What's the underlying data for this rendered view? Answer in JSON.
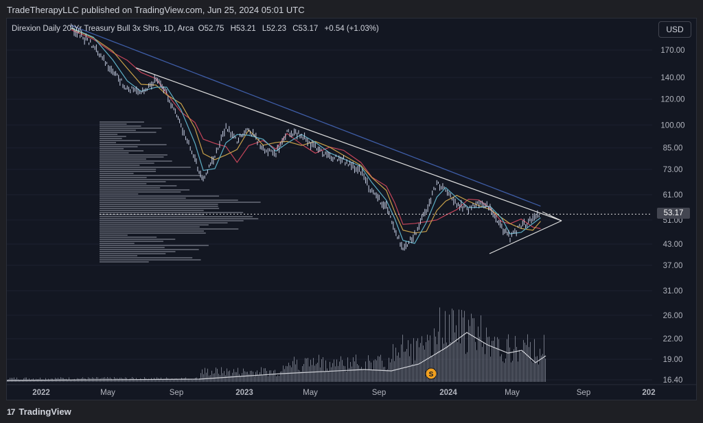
{
  "header": {
    "published": "TradeTherapyLLC published on TradingView.com, Jun 25, 2024 05:01 UTC"
  },
  "symbol": {
    "name": "Direxion Daily 20-Yr Treasury Bull 3x Shrs, 1D, Arca",
    "open": "O52.75",
    "high": "H53.21",
    "low": "L52.23",
    "close": "C53.17",
    "change": "+0.54 (+1.03%)"
  },
  "currency_button": "USD",
  "footer": {
    "brand": "TradingView",
    "logo": "17"
  },
  "colors": {
    "background": "#131722",
    "candle": "#c9d1e6",
    "ma_fast": "#5fb0c7",
    "ma_mid": "#c9a24a",
    "ma_slow": "#c4455a",
    "ma_long": "#3f5ea8",
    "trendline": "#e0e0e0",
    "volume": "#8a8f9c"
  },
  "chart_data": {
    "type": "line",
    "title": "",
    "scale": "log",
    "y_ticks": [
      "170.00",
      "140.00",
      "120.00",
      "100.00",
      "85.00",
      "73.00",
      "61.00",
      "51.00",
      "43.00",
      "37.00",
      "31.00",
      "26.00",
      "22.00",
      "19.00",
      "16.40"
    ],
    "x_ticks": [
      "2022",
      "May",
      "Sep",
      "2023",
      "May",
      "Sep",
      "2024",
      "May",
      "Sep",
      "202"
    ],
    "last_price": "53.17",
    "marker": "S",
    "series": [
      {
        "values": [
          {
            "date": "2022-03-01",
            "y": 200
          },
          {
            "date": "2022-04-10",
            "y": 175
          },
          {
            "date": "2022-05-15",
            "y": 145
          },
          {
            "date": "2022-06-10",
            "y": 130
          },
          {
            "date": "2022-07-05",
            "y": 125
          },
          {
            "date": "2022-08-01",
            "y": 138
          },
          {
            "date": "2022-08-20",
            "y": 125
          },
          {
            "date": "2022-09-15",
            "y": 100
          },
          {
            "date": "2022-10-10",
            "y": 78
          },
          {
            "date": "2022-10-25",
            "y": 68
          },
          {
            "date": "2022-11-15",
            "y": 80
          },
          {
            "date": "2022-12-05",
            "y": 98
          },
          {
            "date": "2022-12-25",
            "y": 90
          },
          {
            "date": "2023-01-15",
            "y": 97
          },
          {
            "date": "2023-02-10",
            "y": 85
          },
          {
            "date": "2023-03-05",
            "y": 82
          },
          {
            "date": "2023-03-25",
            "y": 95
          },
          {
            "date": "2023-04-20",
            "y": 93
          },
          {
            "date": "2023-05-15",
            "y": 85
          },
          {
            "date": "2023-06-10",
            "y": 80
          },
          {
            "date": "2023-07-05",
            "y": 78
          },
          {
            "date": "2023-08-05",
            "y": 72
          },
          {
            "date": "2023-08-25",
            "y": 62
          },
          {
            "date": "2023-09-20",
            "y": 56
          },
          {
            "date": "2023-10-05",
            "y": 48
          },
          {
            "date": "2023-10-20",
            "y": 41
          },
          {
            "date": "2023-11-10",
            "y": 46
          },
          {
            "date": "2023-12-01",
            "y": 55
          },
          {
            "date": "2023-12-20",
            "y": 66
          },
          {
            "date": "2024-01-05",
            "y": 63
          },
          {
            "date": "2024-01-25",
            "y": 57
          },
          {
            "date": "2024-02-15",
            "y": 55
          },
          {
            "date": "2024-03-05",
            "y": 57
          },
          {
            "date": "2024-03-25",
            "y": 56
          },
          {
            "date": "2024-04-15",
            "y": 48
          },
          {
            "date": "2024-04-30",
            "y": 45
          },
          {
            "date": "2024-05-20",
            "y": 49
          },
          {
            "date": "2024-06-10",
            "y": 51
          },
          {
            "date": "2024-06-24",
            "y": 53.17
          }
        ]
      }
    ]
  }
}
